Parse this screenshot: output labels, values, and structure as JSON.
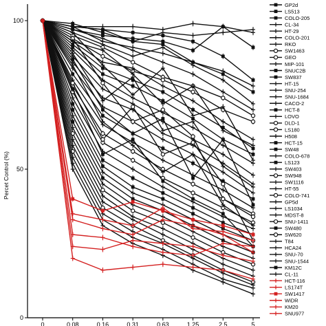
{
  "chart_data": {
    "type": "line",
    "ylabel": "Percet Control (%)",
    "xlabel": "",
    "categories": [
      "0",
      "0.08",
      "0.16",
      "0.31",
      "0.63",
      "1.25",
      "2.5",
      "5"
    ],
    "ylim": [
      0,
      100
    ],
    "yticks": [
      "0",
      "50",
      "100"
    ],
    "grid": false,
    "legend_position": "right",
    "colors": {
      "black": "#111111",
      "red": "#d42020",
      "axis": "#000000"
    },
    "series": [
      {
        "name": "GP2d",
        "color": "black",
        "marker": "square",
        "values": [
          100,
          98,
          97,
          96,
          95,
          93,
          88,
          80
        ]
      },
      {
        "name": "LS513",
        "color": "black",
        "marker": "square",
        "values": [
          100,
          99,
          96,
          93,
          92,
          86,
          82,
          76
        ]
      },
      {
        "name": "COLO-205",
        "color": "black",
        "marker": "square",
        "values": [
          100,
          97,
          95,
          94,
          93,
          90,
          98,
          91
        ]
      },
      {
        "name": "CL-34",
        "color": "black",
        "marker": "plus",
        "values": [
          100,
          98,
          97,
          93,
          96,
          95,
          96,
          97
        ]
      },
      {
        "name": "HT-29",
        "color": "black",
        "marker": "plus",
        "values": [
          100,
          98,
          93,
          91,
          89,
          86,
          83,
          78
        ]
      },
      {
        "name": "COLO-201",
        "color": "black",
        "marker": "plus",
        "values": [
          100,
          96,
          92,
          88,
          91,
          85,
          80,
          72
        ]
      },
      {
        "name": "RKO",
        "color": "black",
        "marker": "plus",
        "values": [
          100,
          97,
          94,
          90,
          86,
          82,
          76,
          70
        ]
      },
      {
        "name": "SW1463",
        "color": "black",
        "marker": "circle",
        "values": [
          100,
          95,
          91,
          86,
          81,
          78,
          74,
          68
        ]
      },
      {
        "name": "GEO",
        "color": "black",
        "marker": "circle",
        "values": [
          100,
          94,
          88,
          83,
          80,
          76,
          70,
          66
        ]
      },
      {
        "name": "MIP-101",
        "color": "black",
        "marker": "plus",
        "values": [
          100,
          93,
          86,
          84,
          78,
          73,
          66,
          60
        ]
      },
      {
        "name": "SNUC2B",
        "color": "black",
        "marker": "square",
        "values": [
          100,
          92,
          84,
          80,
          76,
          70,
          64,
          57
        ]
      },
      {
        "name": "SW837",
        "color": "black",
        "marker": "square",
        "values": [
          100,
          91,
          82,
          78,
          73,
          67,
          60,
          55
        ]
      },
      {
        "name": "HT-15",
        "color": "black",
        "marker": "plus",
        "values": [
          100,
          90,
          80,
          74,
          69,
          64,
          58,
          52
        ]
      },
      {
        "name": "SNU-254",
        "color": "black",
        "marker": "plus",
        "values": [
          100,
          88,
          77,
          72,
          66,
          60,
          55,
          48
        ]
      },
      {
        "name": "SNU-1684",
        "color": "black",
        "marker": "plus",
        "values": [
          100,
          86,
          74,
          70,
          62,
          58,
          52,
          45
        ]
      },
      {
        "name": "CACO-2",
        "color": "black",
        "marker": "plus",
        "values": [
          100,
          84,
          71,
          66,
          60,
          55,
          49,
          42
        ]
      },
      {
        "name": "HCT-8",
        "color": "black",
        "marker": "square",
        "values": [
          100,
          82,
          68,
          62,
          57,
          52,
          46,
          40
        ]
      },
      {
        "name": "LOVO",
        "color": "black",
        "marker": "plus",
        "values": [
          100,
          80,
          65,
          59,
          53,
          48,
          43,
          37
        ]
      },
      {
        "name": "DLD-1",
        "color": "black",
        "marker": "circle",
        "values": [
          100,
          78,
          62,
          56,
          50,
          45,
          40,
          35
        ]
      },
      {
        "name": "LS180",
        "color": "black",
        "marker": "circle",
        "values": [
          100,
          76,
          59,
          53,
          47,
          42,
          37,
          32
        ]
      },
      {
        "name": "H508",
        "color": "black",
        "marker": "plus",
        "values": [
          100,
          74,
          56,
          50,
          44,
          39,
          34,
          30
        ]
      },
      {
        "name": "HCT-15",
        "color": "black",
        "marker": "square",
        "values": [
          100,
          72,
          53,
          47,
          42,
          37,
          32,
          28
        ]
      },
      {
        "name": "SW48",
        "color": "black",
        "marker": "square",
        "values": [
          100,
          70,
          51,
          44,
          40,
          35,
          30,
          26
        ]
      },
      {
        "name": "COLO-678",
        "color": "black",
        "marker": "plus",
        "values": [
          100,
          68,
          49,
          42,
          38,
          33,
          28,
          24
        ]
      },
      {
        "name": "LS123",
        "color": "black",
        "marker": "square",
        "values": [
          100,
          66,
          47,
          40,
          36,
          31,
          26,
          22
        ]
      },
      {
        "name": "SW403",
        "color": "black",
        "marker": "plus",
        "values": [
          100,
          64,
          45,
          38,
          34,
          29,
          24,
          20
        ]
      },
      {
        "name": "SW948",
        "color": "black",
        "marker": "circle",
        "values": [
          100,
          62,
          43,
          36,
          32,
          27,
          22,
          18
        ]
      },
      {
        "name": "SW1116",
        "color": "black",
        "marker": "plus",
        "values": [
          100,
          60,
          41,
          34,
          30,
          25,
          20,
          16
        ]
      },
      {
        "name": "HT-55",
        "color": "black",
        "marker": "plus",
        "values": [
          100,
          58,
          39,
          33,
          28,
          23,
          18,
          14
        ]
      },
      {
        "name": "COLO-741",
        "color": "black",
        "marker": "circle",
        "values": [
          100,
          56,
          37,
          31,
          26,
          21,
          16,
          12
        ]
      },
      {
        "name": "GP5d",
        "color": "black",
        "marker": "plus",
        "values": [
          100,
          54,
          35,
          29,
          25,
          20,
          15,
          11
        ]
      },
      {
        "name": "LS1034",
        "color": "black",
        "marker": "plus",
        "values": [
          100,
          52,
          33,
          27,
          23,
          18,
          13,
          10
        ]
      },
      {
        "name": "MDST-8",
        "color": "black",
        "marker": "plus",
        "values": [
          100,
          50,
          31,
          25,
          21,
          16,
          12,
          8
        ]
      },
      {
        "name": "SNU-1411",
        "color": "black",
        "marker": "circle",
        "values": [
          100,
          79,
          60,
          71,
          55,
          59,
          45,
          26
        ]
      },
      {
        "name": "SW480",
        "color": "black",
        "marker": "square",
        "values": [
          100,
          87,
          70,
          62,
          67,
          47,
          60,
          38
        ]
      },
      {
        "name": "SW620",
        "color": "black",
        "marker": "circle",
        "values": [
          100,
          94,
          79,
          66,
          70,
          61,
          40,
          34
        ]
      },
      {
        "name": "T84",
        "color": "black",
        "marker": "plus",
        "values": [
          100,
          89,
          73,
          81,
          63,
          66,
          51,
          44
        ]
      },
      {
        "name": "HCA24",
        "color": "black",
        "marker": "plus",
        "values": [
          100,
          96,
          85,
          75,
          84,
          68,
          71,
          53
        ]
      },
      {
        "name": "SNU-70",
        "color": "black",
        "marker": "plus",
        "values": [
          100,
          93,
          90,
          82,
          72,
          78,
          63,
          58
        ]
      },
      {
        "name": "SNU-1544",
        "color": "black",
        "marker": "plus",
        "values": [
          100,
          85,
          66,
          58,
          49,
          55,
          38,
          31
        ]
      },
      {
        "name": "KM12C",
        "color": "black",
        "marker": "square",
        "values": [
          100,
          77,
          55,
          60,
          46,
          40,
          35,
          24
        ]
      },
      {
        "name": "CL-11",
        "color": "black",
        "marker": "plus",
        "values": [
          100,
          98,
          98,
          98,
          97,
          99,
          98,
          96
        ]
      },
      {
        "name": "HCT-116",
        "color": "red",
        "marker": "plus",
        "values": [
          100,
          35,
          33,
          31,
          37,
          30,
          29,
          26
        ]
      },
      {
        "name": "LS174T",
        "color": "red",
        "marker": "plus",
        "values": [
          100,
          33,
          30,
          28,
          33,
          31,
          28,
          22
        ]
      },
      {
        "name": "SW1417",
        "color": "red",
        "marker": "square",
        "values": [
          100,
          40,
          36,
          39,
          36,
          33,
          31,
          28
        ]
      },
      {
        "name": "WiDR",
        "color": "red",
        "marker": "plus",
        "values": [
          100,
          24,
          23,
          26,
          25,
          24,
          21,
          19
        ]
      },
      {
        "name": "KM20",
        "color": "red",
        "marker": "plus",
        "values": [
          100,
          20,
          16,
          17,
          18,
          17,
          16,
          13
        ]
      },
      {
        "name": "SNU977",
        "color": "red",
        "marker": "plus",
        "values": [
          100,
          28,
          27,
          24,
          22,
          21,
          25,
          24
        ]
      }
    ]
  }
}
